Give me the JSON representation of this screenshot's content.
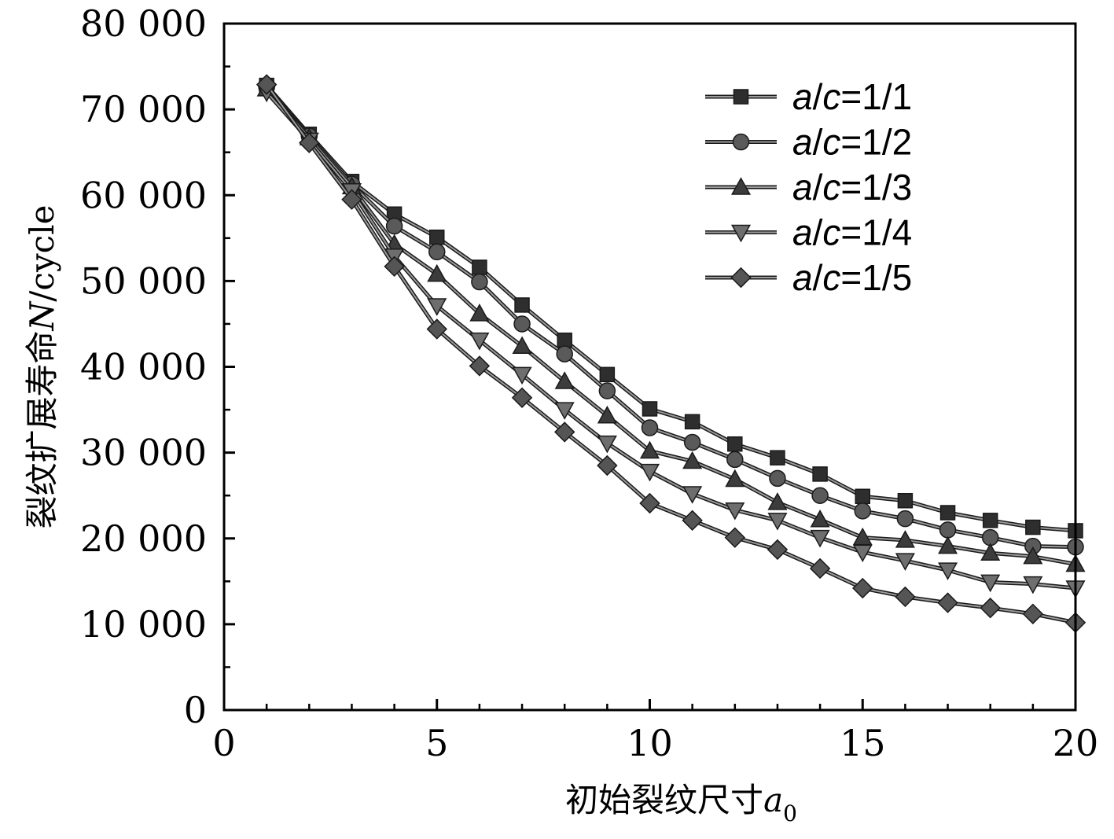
{
  "chart_data": {
    "type": "line",
    "xlabel": "初始裂纹尺寸a0",
    "xlabel_main": "初始裂纹尺寸",
    "xlabel_var": "a",
    "xlabel_sub": "0",
    "ylabel": "裂纹扩展寿命N/cycle",
    "ylabel_main": "裂纹扩展寿命",
    "ylabel_var": "N",
    "ylabel_unit": "/cycle",
    "xlim": [
      0,
      20
    ],
    "ylim": [
      0,
      80000
    ],
    "xticks": [
      0,
      5,
      10,
      15,
      20
    ],
    "xtick_labels": [
      "0",
      "5",
      "10",
      "15",
      "20"
    ],
    "yticks": [
      0,
      10000,
      20000,
      30000,
      40000,
      50000,
      60000,
      70000,
      80000
    ],
    "ytick_labels": [
      "0",
      "10 000",
      "20 000",
      "30 000",
      "40 000",
      "50 000",
      "60 000",
      "70 000",
      "80 000"
    ],
    "legend_position": "top-right",
    "grid": false,
    "x": [
      1,
      2,
      3,
      4,
      5,
      6,
      7,
      8,
      9,
      10,
      11,
      12,
      13,
      14,
      15,
      16,
      17,
      18,
      19,
      20
    ],
    "series": [
      {
        "name": "a/c=1/1",
        "name_var1": "a",
        "name_slash": "/",
        "name_var2": "c",
        "name_value": "=1/1",
        "marker": "square",
        "color": "#2e2e2e",
        "values": [
          72800,
          67100,
          61600,
          57800,
          55100,
          51600,
          47200,
          43100,
          39100,
          35100,
          33600,
          31000,
          29400,
          27500,
          24900,
          24400,
          23000,
          22100,
          21300,
          20900
        ]
      },
      {
        "name": "a/c=1/2",
        "name_var1": "a",
        "name_slash": "/",
        "name_var2": "c",
        "name_value": "=1/2",
        "marker": "circle",
        "color": "#5a5a5a",
        "values": [
          72600,
          66900,
          61300,
          56400,
          53400,
          49900,
          45000,
          41500,
          37200,
          32900,
          31200,
          29200,
          27000,
          25000,
          23200,
          22300,
          21000,
          20100,
          19100,
          19000
        ]
      },
      {
        "name": "a/c=1/3",
        "name_var1": "a",
        "name_slash": "/",
        "name_var2": "c",
        "name_value": "=1/3",
        "marker": "triangle-up",
        "color": "#3c3c3c",
        "values": [
          72400,
          66700,
          61000,
          54300,
          50800,
          46200,
          42400,
          38300,
          34300,
          30200,
          29000,
          26900,
          24200,
          22200,
          20100,
          19800,
          19100,
          18300,
          17900,
          17000
        ]
      },
      {
        "name": "a/c=1/4",
        "name_var1": "a",
        "name_slash": "/",
        "name_var2": "c",
        "name_value": "=1/4",
        "marker": "triangle-down",
        "color": "#6e6e6e",
        "values": [
          72000,
          66400,
          60500,
          52900,
          47100,
          43100,
          39100,
          35000,
          31100,
          27800,
          25200,
          23300,
          22100,
          20100,
          18400,
          17400,
          16300,
          14900,
          14700,
          14200
        ]
      },
      {
        "name": "a/c=1/5",
        "name_var1": "a",
        "name_slash": "/",
        "name_var2": "c",
        "name_value": "=1/5",
        "marker": "diamond",
        "color": "#555555",
        "values": [
          72900,
          66100,
          59500,
          51700,
          44400,
          40100,
          36400,
          32400,
          28500,
          24100,
          22100,
          20100,
          18700,
          16500,
          14200,
          13200,
          12500,
          11900,
          11200,
          10200
        ]
      }
    ]
  }
}
